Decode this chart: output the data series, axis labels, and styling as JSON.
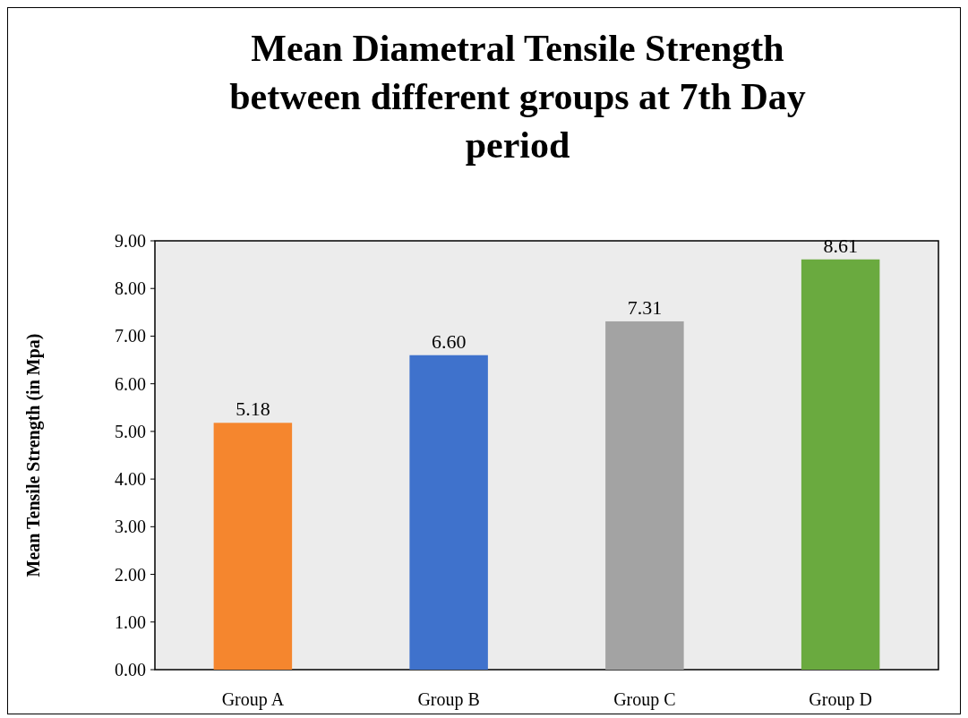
{
  "chart_data": {
    "type": "bar",
    "title": "Mean Diametral Tensile Strength between different groups at 7th Day period",
    "ylabel": "Mean Tensile Strength (in Mpa)",
    "categories": [
      "Group A",
      "Group B",
      "Group C",
      "Group D"
    ],
    "values": [
      5.18,
      6.6,
      7.31,
      8.61
    ],
    "colors": [
      "#f5862e",
      "#3f72cc",
      "#a3a3a3",
      "#6aaa3f"
    ],
    "value_labels": [
      "5.18",
      "6.60",
      "7.31",
      "8.61"
    ],
    "ylim": [
      0,
      9
    ],
    "yticks": [
      {
        "value": 0,
        "label": "0.00"
      },
      {
        "value": 1,
        "label": "1.00"
      },
      {
        "value": 2,
        "label": "2.00"
      },
      {
        "value": 3,
        "label": "3.00"
      },
      {
        "value": 4,
        "label": "4.00"
      },
      {
        "value": 5,
        "label": "5.00"
      },
      {
        "value": 6,
        "label": "6.00"
      },
      {
        "value": 7,
        "label": "7.00"
      },
      {
        "value": 8,
        "label": "8.00"
      },
      {
        "value": 9,
        "label": "9.00"
      }
    ],
    "grid": false
  }
}
